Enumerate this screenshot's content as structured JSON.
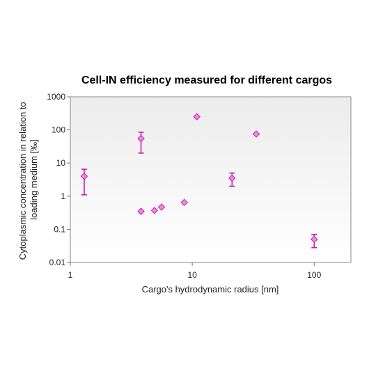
{
  "chart_data": {
    "type": "scatter",
    "title": "Cell-IN efficiency measured for different cargos",
    "xlabel": "Cargo's hydrodynamic radius [nm]",
    "ylabel_lines": [
      "Cytoplasmic concentration in relation to",
      "loading medium [‰]"
    ],
    "xscale": "log",
    "yscale": "log",
    "xlim": [
      1,
      200
    ],
    "ylim": [
      0.01,
      1000
    ],
    "x_ticks": [
      1,
      10,
      100
    ],
    "x_tick_labels": [
      "1",
      "10",
      "100"
    ],
    "y_ticks": [
      0.01,
      0.1,
      1,
      10,
      100,
      1000
    ],
    "y_tick_labels": [
      "0.01",
      "0.1",
      "1",
      "10",
      "100",
      "1000"
    ],
    "grid": false,
    "marker": "diamond",
    "marker_color": "#e68de0",
    "errorbar_color": "#cc1aa6",
    "points": [
      {
        "x": 1.3,
        "y": 4,
        "err_low": 1.1,
        "err_high": 6.5
      },
      {
        "x": 3.8,
        "y": 55,
        "err_low": 20,
        "err_high": 85
      },
      {
        "x": 3.8,
        "y": 0.35
      },
      {
        "x": 4.9,
        "y": 0.37
      },
      {
        "x": 5.6,
        "y": 0.47
      },
      {
        "x": 8.6,
        "y": 0.65
      },
      {
        "x": 10.9,
        "y": 250
      },
      {
        "x": 21.2,
        "y": 3.5,
        "err_low": 2,
        "err_high": 5
      },
      {
        "x": 33.5,
        "y": 75
      },
      {
        "x": 100,
        "y": 0.05,
        "err_low": 0.028,
        "err_high": 0.07
      }
    ]
  }
}
